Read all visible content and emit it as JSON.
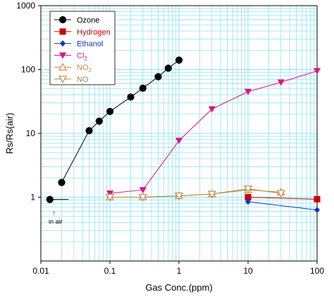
{
  "chart_data": {
    "type": "line",
    "xscale": "log",
    "yscale": "log",
    "xlim": [
      0.01,
      100
    ],
    "ylim": [
      0.1,
      1000
    ],
    "xlabel": "Gas Conc.(ppm)",
    "ylabel": "Rs/Rs(air)",
    "x_ticks": [
      "0.01",
      "0.1",
      "1",
      "10",
      "100"
    ],
    "y_ticks": [
      "1",
      "10",
      "100",
      "1000"
    ],
    "grid": true,
    "grid_color": "#8fe3f5",
    "legend_position": "top-left",
    "series": [
      {
        "name": "Ozone",
        "color": "#000000",
        "marker": "circle-filled",
        "x": [
          0.02,
          0.05,
          0.07,
          0.1,
          0.2,
          0.3,
          0.5,
          0.7,
          1.0
        ],
        "y": [
          1.7,
          11,
          15.5,
          22,
          37,
          51,
          77,
          105,
          140
        ]
      },
      {
        "name": "Hydrogen",
        "color": "#cc0000",
        "marker": "square-filled",
        "x": [
          10,
          100
        ],
        "y": [
          1.0,
          0.93
        ]
      },
      {
        "name": "Ethanol",
        "color": "#1a2ec8",
        "marker": "diamond-filled",
        "x": [
          10,
          100
        ],
        "y": [
          0.85,
          0.63
        ]
      },
      {
        "name": "Cl2",
        "name_base": "Cl",
        "name_sub": "2",
        "color": "#e0117f",
        "marker": "triangle-down-filled",
        "x": [
          0.1,
          0.3,
          1.0,
          3.0,
          10,
          30,
          100
        ],
        "y": [
          1.15,
          1.3,
          7.7,
          24,
          45,
          63,
          95
        ]
      },
      {
        "name": "NO2",
        "name_base": "NO",
        "name_sub": "2",
        "color": "#d9823a",
        "marker": "triangle-up-open",
        "x": [
          0.1,
          0.3,
          1.0,
          3.0,
          10,
          30
        ],
        "y": [
          1.0,
          1.0,
          1.05,
          1.12,
          1.3,
          1.2
        ]
      },
      {
        "name": "NO",
        "color": "#a98b40",
        "marker": "triangle-down-open",
        "x": [
          0.1,
          0.3,
          1.0,
          3.0,
          10,
          30
        ],
        "y": [
          1.0,
          1.0,
          1.05,
          1.12,
          1.35,
          1.15
        ]
      }
    ],
    "baseline": {
      "color": "#000000",
      "x": [
        0.0135,
        0.025
      ],
      "y": [
        0.92,
        0.92
      ]
    },
    "annotation": {
      "text": "in air",
      "arrow": "↑",
      "x": 0.0135,
      "y": 0.92
    }
  }
}
